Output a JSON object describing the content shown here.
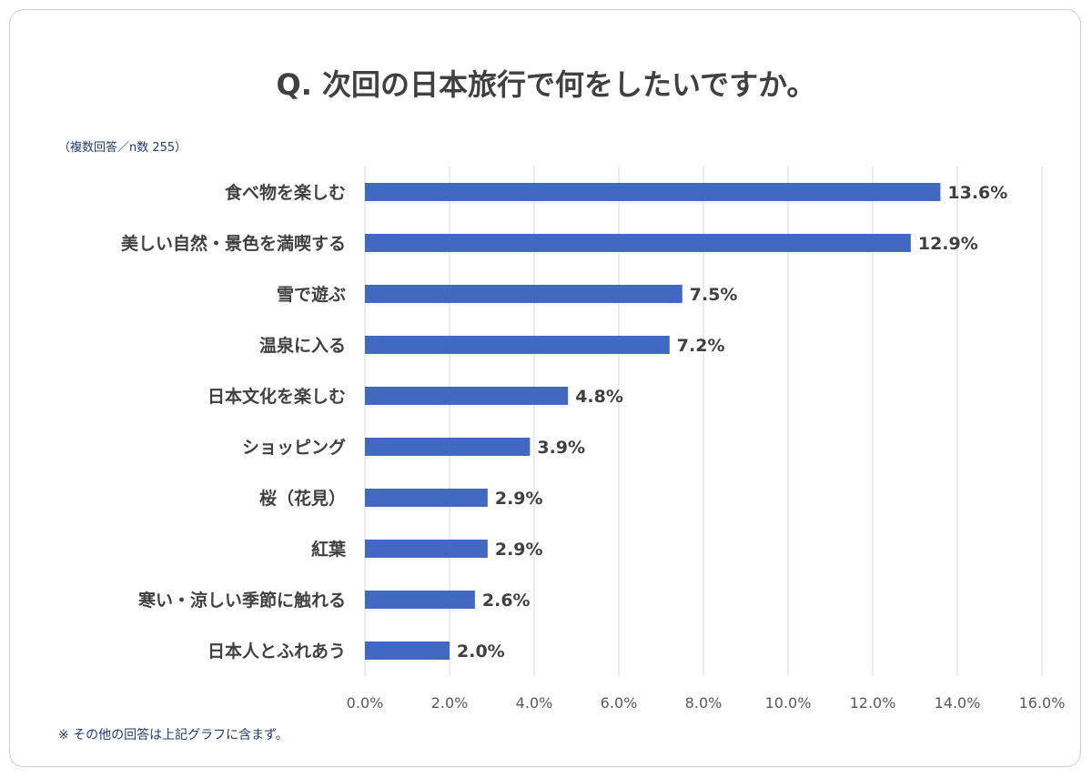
{
  "chart_data": {
    "type": "bar",
    "orientation": "horizontal",
    "title": "Q. 次回の日本旅行で何をしたいですか。",
    "subtitle": "（複数回答／n数 255）",
    "footnote": "※ その他の回答は上記グラフに含まず。",
    "categories": [
      "食べ物を楽しむ",
      "美しい自然・景色を満喫する",
      "雪で遊ぶ",
      "温泉に入る",
      "日本文化を楽しむ",
      "ショッピング",
      "桜（花見）",
      "紅葉",
      "寒い・涼しい季節に触れる",
      "日本人とふれあう"
    ],
    "values": [
      13.6,
      12.9,
      7.5,
      7.2,
      4.8,
      3.9,
      2.9,
      2.9,
      2.6,
      2.0
    ],
    "value_labels": [
      "13.6%",
      "12.9%",
      "7.5%",
      "7.2%",
      "4.8%",
      "3.9%",
      "2.9%",
      "2.9%",
      "2.6%",
      "2.0%"
    ],
    "xlim": [
      0,
      16
    ],
    "xticks": [
      0,
      2,
      4,
      6,
      8,
      10,
      12,
      14,
      16
    ],
    "xtick_labels": [
      "0.0%",
      "2.0%",
      "4.0%",
      "6.0%",
      "8.0%",
      "10.0%",
      "12.0%",
      "14.0%",
      "16.0%"
    ],
    "grid": "vertical",
    "legend": "none",
    "bar_color": "#4169c1",
    "grid_color": "#d9d9d9"
  }
}
